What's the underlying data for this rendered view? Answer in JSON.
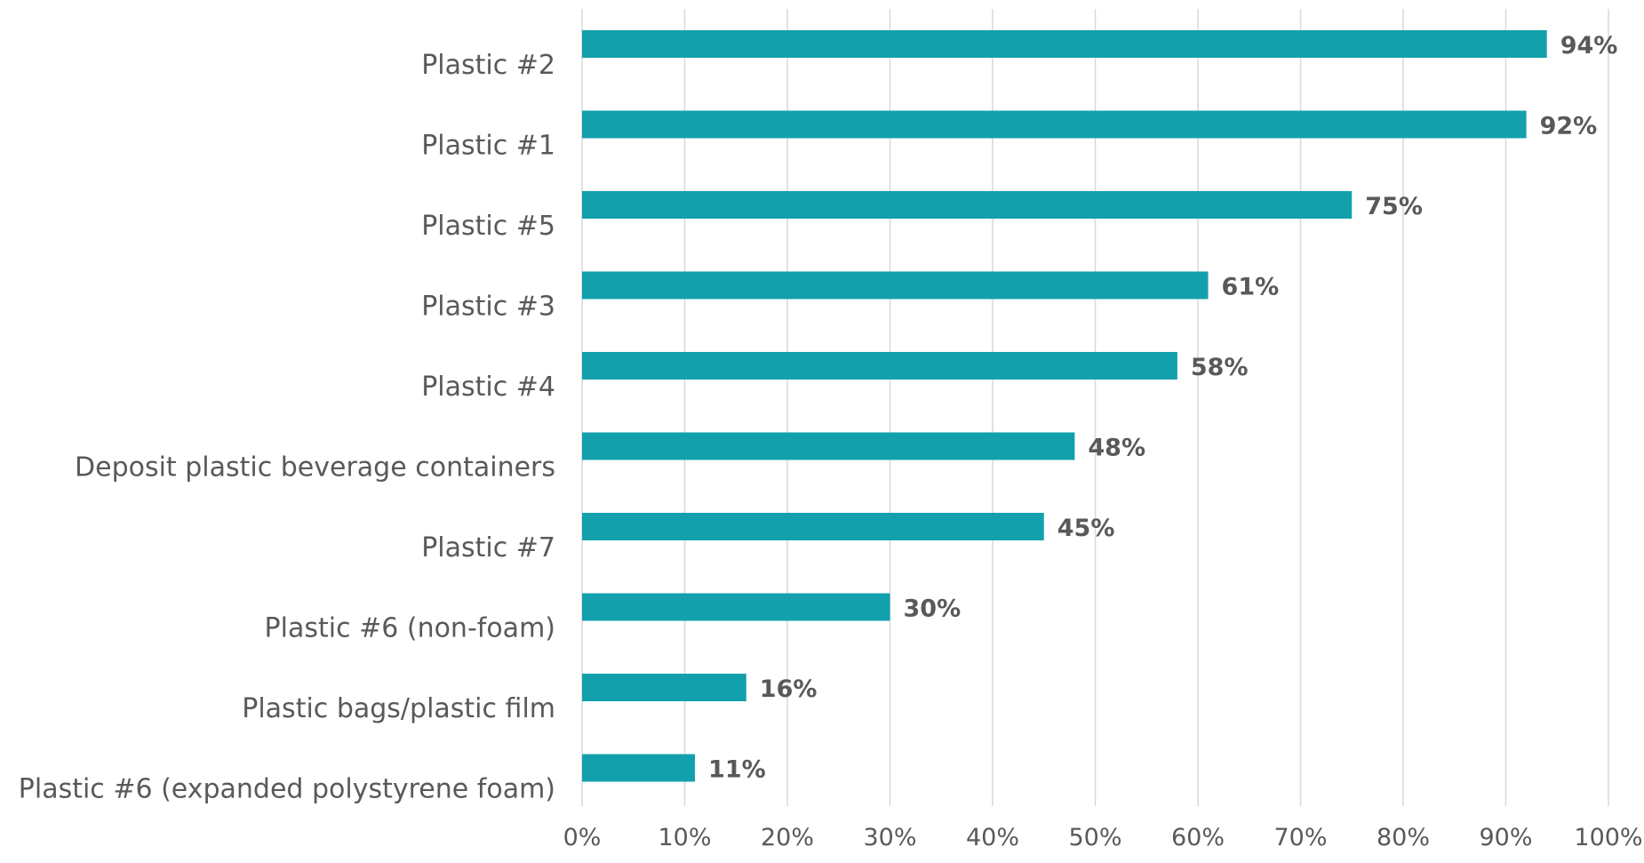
{
  "chart_data": {
    "type": "bar",
    "orientation": "horizontal",
    "title": "",
    "xlabel": "",
    "ylabel": "",
    "categories": [
      "Plastic #2",
      "Plastic #1",
      "Plastic #5",
      "Plastic #3",
      "Plastic #4",
      "Deposit plastic beverage containers",
      "Plastic #7",
      "Plastic #6 (non-foam)",
      "Plastic bags/plastic film",
      "Plastic #6 (expanded polystyrene foam)"
    ],
    "values": [
      94,
      92,
      75,
      61,
      58,
      48,
      45,
      30,
      16,
      11
    ],
    "value_labels": [
      "94%",
      "92%",
      "75%",
      "61%",
      "58%",
      "48%",
      "45%",
      "30%",
      "16%",
      "11%"
    ],
    "xlim": [
      0,
      100
    ],
    "x_ticks": [
      0,
      10,
      20,
      30,
      40,
      50,
      60,
      70,
      80,
      90,
      100
    ],
    "x_tick_labels": [
      "0%",
      "10%",
      "20%",
      "30%",
      "40%",
      "50%",
      "60%",
      "70%",
      "80%",
      "90%",
      "100%"
    ],
    "grid": "vertical",
    "legend": "none",
    "bar_color": "#13a0ad",
    "label_color": "#595959",
    "grid_color": "#d9d9d9"
  }
}
